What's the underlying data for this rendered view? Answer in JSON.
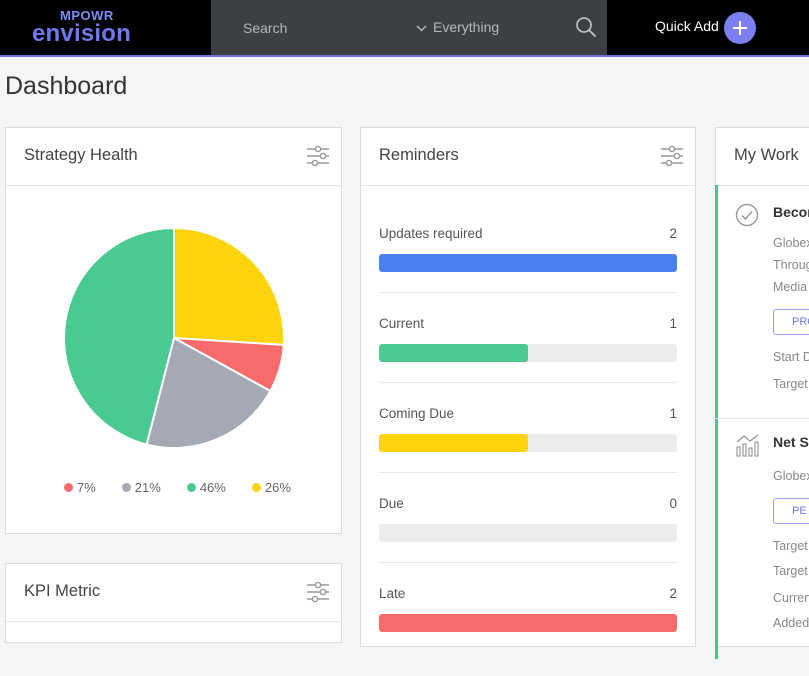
{
  "topbar": {
    "logo_top": "MPOWR",
    "logo_bottom": "envision",
    "search_placeholder": "Search",
    "scope_label": "Everything",
    "quick_add_label": "Quick Add"
  },
  "page": {
    "title": "Dashboard"
  },
  "strategy_health": {
    "title": "Strategy Health",
    "slices": [
      {
        "label": "7%",
        "value": 7,
        "color": "#f76b6b"
      },
      {
        "label": "21%",
        "value": 21,
        "color": "#a4a9b3"
      },
      {
        "label": "46%",
        "value": 46,
        "color": "#4ac991"
      },
      {
        "label": "26%",
        "value": 26,
        "color": "#fed30c"
      }
    ]
  },
  "kpi": {
    "title": "KPI Metric"
  },
  "reminders": {
    "title": "Reminders",
    "rows": [
      {
        "label": "Updates required",
        "count": "2",
        "fill": 1.0,
        "color": "#4a7ff0"
      },
      {
        "label": "Current",
        "count": "1",
        "fill": 0.5,
        "color": "#4ac991"
      },
      {
        "label": "Coming Due",
        "count": "1",
        "fill": 0.5,
        "color": "#fed30c"
      },
      {
        "label": "Due",
        "count": "0",
        "fill": 0.0,
        "color": "#4ac991"
      },
      {
        "label": "Late",
        "count": "2",
        "fill": 1.0,
        "color": "#f76b6b"
      }
    ]
  },
  "my_work": {
    "title": "My Work",
    "items": [
      {
        "title": "Becor",
        "lines": [
          "Globex",
          "Throug",
          "Media"
        ],
        "badge": "PRO",
        "meta": [
          "Start D",
          "Target"
        ]
      },
      {
        "title": "Net S",
        "lines": [
          "Globex"
        ],
        "badge": "PE",
        "meta": [
          "Target",
          "Target",
          "Curren",
          "Added"
        ]
      }
    ]
  },
  "colors": {
    "accent": "#6f78ee",
    "green": "#4ac991",
    "yellow": "#fed30c",
    "red": "#f76b6b",
    "gray": "#a4a9b3",
    "blue": "#4a7ff0"
  }
}
